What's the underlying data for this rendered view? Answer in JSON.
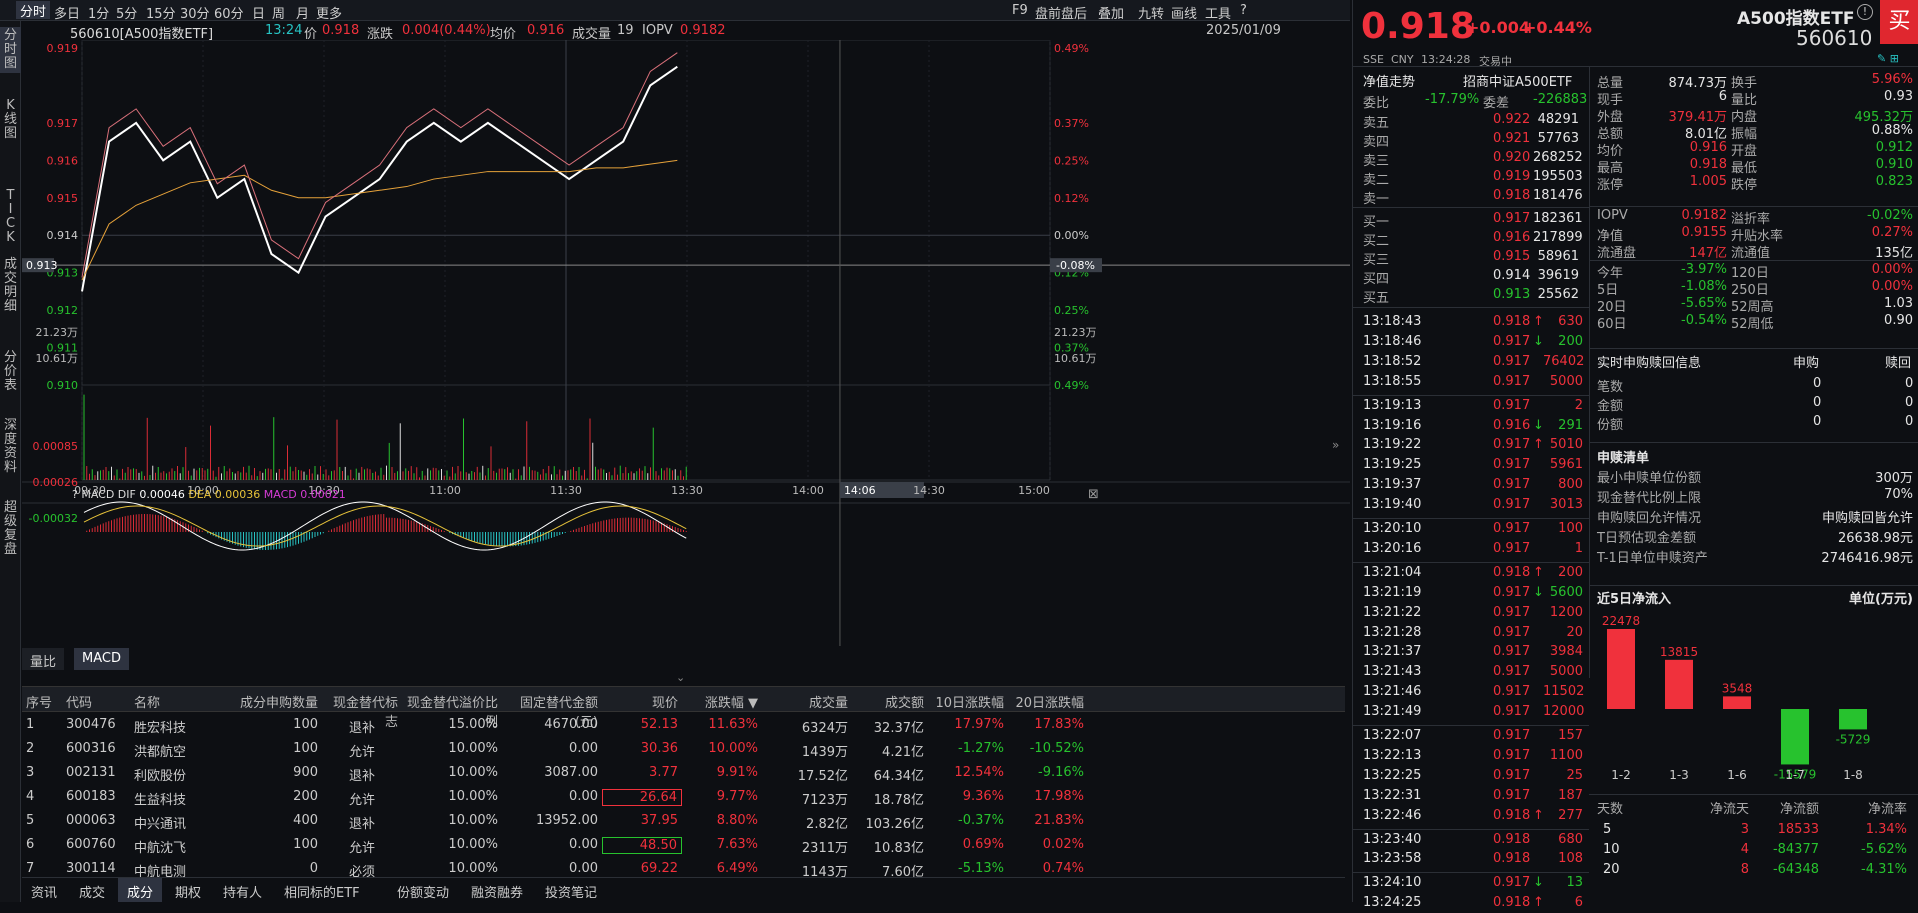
{
  "toolbar": {
    "left": [
      "分时",
      "多日",
      "1分",
      "5分",
      "15分",
      "30分",
      "60分",
      "日",
      "周",
      "月",
      "更多"
    ],
    "right": [
      "F9",
      "盘前盘后",
      "叠加",
      "九转",
      "画线",
      "工具",
      "?"
    ]
  },
  "sidebar": [
    "分时图",
    "K线图",
    "TICK",
    "成交明细",
    "分价表",
    "深度资料",
    "超级复盘"
  ],
  "info": {
    "name": "560610[A500指数ETF]",
    "time": "13:24",
    "price_label": "价",
    "price": "0.918",
    "chg_label": "涨跌",
    "chg": "0.004(0.44%)",
    "avg_label": "均价",
    "avg": "0.916",
    "vol_label": "成交量",
    "vol": "19",
    "iopv_label": "IOPV",
    "iopv": "0.9182",
    "date": "2025/01/09"
  },
  "price_axis_left": [
    "0.919",
    "0.917",
    "0.916",
    "0.915",
    "0.914",
    "0.913",
    "0.912",
    "0.911",
    "0.910"
  ],
  "price_axis_right": [
    "0.49%",
    "0.37%",
    "0.25%",
    "0.12%",
    "0.00%",
    "0.12%",
    "0.25%",
    "0.37%",
    "0.49%"
  ],
  "crosshair": {
    "price": "0.913",
    "pct": "-0.08%",
    "time": "14:06"
  },
  "vol_axis": [
    "21.23万",
    "10.61万"
  ],
  "time_axis": [
    "09:30",
    "10:00",
    "10:30",
    "11:00",
    "11:30",
    "13:00",
    "13:30",
    "14:00",
    "14:30",
    "15:00"
  ],
  "macd": {
    "title": "MACD",
    "dif_label": "DIF",
    "dif": "0.00046",
    "dea_label": "DEA",
    "dea": "0.00036",
    "macd_label": "MACD",
    "macd": "0.00021",
    "axis": [
      "0.00085",
      "0.00026",
      "-0.00032"
    ]
  },
  "indicator_tabs": [
    "量比",
    "MACD"
  ],
  "grid_headers": [
    "序号",
    "代码",
    "名称",
    "成分申购数量",
    "现金替代标志",
    "现金替代溢价比例",
    "固定替代金额(元)",
    "现价",
    "涨跌幅 ▼",
    "成交量",
    "成交额",
    "10日涨跌幅",
    "20日涨跌幅"
  ],
  "grid_rows": [
    [
      "1",
      "300476",
      "胜宏科技",
      "100",
      "退补",
      "15.00%",
      "4670.00",
      "52.13",
      "11.63%",
      "6324万",
      "32.37亿",
      "17.97%",
      "17.83%"
    ],
    [
      "2",
      "600316",
      "洪都航空",
      "100",
      "允许",
      "10.00%",
      "0.00",
      "30.36",
      "10.00%",
      "1439万",
      "4.21亿",
      "-1.27%",
      "-10.52%"
    ],
    [
      "3",
      "002131",
      "利欧股份",
      "900",
      "退补",
      "10.00%",
      "3087.00",
      "3.77",
      "9.91%",
      "17.52亿",
      "64.34亿",
      "12.54%",
      "-9.16%"
    ],
    [
      "4",
      "600183",
      "生益科技",
      "200",
      "允许",
      "10.00%",
      "0.00",
      "26.64",
      "9.77%",
      "7123万",
      "18.78亿",
      "9.36%",
      "17.98%"
    ],
    [
      "5",
      "000063",
      "中兴通讯",
      "400",
      "退补",
      "10.00%",
      "13952.00",
      "37.95",
      "8.80%",
      "2.82亿",
      "103.26亿",
      "-0.37%",
      "21.83%"
    ],
    [
      "6",
      "600760",
      "中航沈飞",
      "100",
      "允许",
      "10.00%",
      "0.00",
      "48.50",
      "7.63%",
      "2311万",
      "10.83亿",
      "0.69%",
      "0.02%"
    ],
    [
      "7",
      "300114",
      "中航电测",
      "0",
      "必须",
      "10.00%",
      "0.00",
      "69.22",
      "6.49%",
      "1143万",
      "7.60亿",
      "-5.13%",
      "0.74%"
    ]
  ],
  "footer_tabs": [
    "资讯",
    "成交",
    "成分",
    "期权",
    "持有人",
    "相同标的ETF",
    "份额变动",
    "融资融券",
    "投资笔记"
  ],
  "quote": {
    "price": "0.918",
    "chg": "+0.004",
    "pct": "+0.44%",
    "name": "A500指数ETF",
    "code": "560610",
    "buy": "买",
    "exch": "SSE",
    "cur": "CNY",
    "time": "13:24:28",
    "status": "交易中"
  },
  "nav_title": "净值走势",
  "index_name": "招商中证A500ETF",
  "weibi": {
    "l1": "委比",
    "v1": "-17.79%",
    "l2": "委差",
    "v2": "-226883"
  },
  "asks": [
    [
      "卖五",
      "0.922",
      "48291"
    ],
    [
      "卖四",
      "0.921",
      "57763"
    ],
    [
      "卖三",
      "0.920",
      "268252"
    ],
    [
      "卖二",
      "0.919",
      "195503"
    ],
    [
      "卖一",
      "0.918",
      "181476"
    ]
  ],
  "bids": [
    [
      "买一",
      "0.917",
      "182361"
    ],
    [
      "买二",
      "0.916",
      "217899"
    ],
    [
      "买三",
      "0.915",
      "58961"
    ],
    [
      "买四",
      "0.914",
      "39619"
    ],
    [
      "买五",
      "0.913",
      "25562"
    ]
  ],
  "stats": [
    [
      "总量",
      "874.73万",
      "换手",
      "5.96%"
    ],
    [
      "现手",
      "6",
      "量比",
      "0.93"
    ],
    [
      "外盘",
      "379.41万",
      "内盘",
      "495.32万"
    ],
    [
      "总额",
      "8.01亿",
      "振幅",
      "0.88%"
    ],
    [
      "均价",
      "0.916",
      "开盘",
      "0.912"
    ],
    [
      "最高",
      "0.918",
      "最低",
      "0.910"
    ],
    [
      "涨停",
      "1.005",
      "跌停",
      "0.823"
    ]
  ],
  "stats2": [
    [
      "IOPV",
      "0.9182",
      "溢折率",
      "-0.02%"
    ],
    [
      "净值",
      "0.9155",
      "升贴水率",
      "0.27%"
    ],
    [
      "流通盘",
      "147亿",
      "流通值",
      "135亿"
    ]
  ],
  "perf": [
    [
      "今年",
      "-3.97%",
      "120日",
      "0.00%"
    ],
    [
      "5日",
      "-1.08%",
      "250日",
      "0.00%"
    ],
    [
      "20日",
      "-5.65%",
      "52周高",
      "1.03"
    ],
    [
      "60日",
      "-0.54%",
      "52周低",
      "0.90"
    ]
  ],
  "sub": {
    "title": "实时申购赎回信息",
    "c1": "申购",
    "c2": "赎回",
    "rows": [
      [
        "笔数",
        "0",
        "0"
      ],
      [
        "金额",
        "0",
        "0"
      ],
      [
        "份额",
        "0",
        "0"
      ]
    ]
  },
  "list": {
    "title": "申赎清单",
    "rows": [
      [
        "最小申赎单位份额",
        "300万"
      ],
      [
        "现金替代比例上限",
        "70%"
      ],
      [
        "申购赎回允许情况",
        "申购赎回皆允许"
      ],
      [
        "T日预估现金差额",
        "26638.98元"
      ],
      [
        "T-1日单位申赎资产",
        "2746416.98元"
      ]
    ]
  },
  "flow": {
    "title": "近5日净流入",
    "unit": "单位(万元)",
    "bars": [
      {
        "label": "1-2",
        "value": 22478
      },
      {
        "label": "1-3",
        "value": 13815
      },
      {
        "label": "1-6",
        "value": 3548
      },
      {
        "label": "1-7",
        "value": -15579
      },
      {
        "label": "1-8",
        "value": -5729
      }
    ],
    "headers": [
      "天数",
      "净流天",
      "净流额",
      "净流率"
    ],
    "rows": [
      [
        "5",
        "3",
        "18533",
        "1.34%"
      ],
      [
        "10",
        "4",
        "-84377",
        "-5.62%"
      ],
      [
        "20",
        "8",
        "-64348",
        "-4.31%"
      ]
    ]
  },
  "ticks": [
    [
      "13:18:43",
      "0.918",
      "↑",
      "630"
    ],
    [
      "13:18:46",
      "0.917",
      "↓",
      "200"
    ],
    [
      "13:18:52",
      "0.917",
      "",
      "76402"
    ],
    [
      "13:18:55",
      "0.917",
      "",
      "5000"
    ],
    [
      "13:19:13",
      "0.917",
      "",
      "2"
    ],
    [
      "13:19:16",
      "0.916",
      "↓",
      "291"
    ],
    [
      "13:19:22",
      "0.917",
      "↑",
      "5010"
    ],
    [
      "13:19:25",
      "0.917",
      "",
      "5961"
    ],
    [
      "13:19:37",
      "0.917",
      "",
      "800"
    ],
    [
      "13:19:40",
      "0.917",
      "",
      "3013"
    ],
    [
      "13:20:10",
      "0.917",
      "",
      "100"
    ],
    [
      "13:20:16",
      "0.917",
      "",
      "1"
    ],
    [
      "13:21:04",
      "0.918",
      "↑",
      "200"
    ],
    [
      "13:21:19",
      "0.917",
      "↓",
      "5600"
    ],
    [
      "13:21:22",
      "0.917",
      "",
      "1200"
    ],
    [
      "13:21:28",
      "0.917",
      "",
      "20"
    ],
    [
      "13:21:37",
      "0.917",
      "",
      "3984"
    ],
    [
      "13:21:43",
      "0.917",
      "",
      "5000"
    ],
    [
      "13:21:46",
      "0.917",
      "",
      "11502"
    ],
    [
      "13:21:49",
      "0.917",
      "",
      "12000"
    ],
    [
      "13:22:07",
      "0.917",
      "",
      "157"
    ],
    [
      "13:22:13",
      "0.917",
      "",
      "1100"
    ],
    [
      "13:22:25",
      "0.917",
      "",
      "25"
    ],
    [
      "13:22:31",
      "0.917",
      "",
      "187"
    ],
    [
      "13:22:46",
      "0.918",
      "↑",
      "277"
    ],
    [
      "13:23:40",
      "0.918",
      "",
      "680"
    ],
    [
      "13:23:58",
      "0.918",
      "",
      "108"
    ],
    [
      "13:24:10",
      "0.917",
      "↓",
      "13"
    ],
    [
      "13:24:25",
      "0.918",
      "↑",
      "6"
    ]
  ],
  "chart_data": {
    "type": "line",
    "x_labels": [
      "09:30",
      "10:00",
      "10:30",
      "11:00",
      "11:30",
      "13:00",
      "13:30",
      "14:00",
      "14:30",
      "15:00"
    ],
    "ylim": [
      0.91,
      0.919
    ],
    "series": [
      {
        "values": [
          0.9125,
          0.9165,
          0.917,
          0.916,
          0.9165,
          0.915,
          0.9155,
          0.9135,
          0.913,
          0.9145,
          0.915,
          0.9155,
          0.9165,
          0.917,
          0.9165,
          0.917,
          0.9165,
          0.916,
          0.9155,
          0.916,
          0.9165,
          0.918,
          0.9185
        ]
      },
      {
        "values": [
          0.9128,
          0.9143,
          0.9148,
          0.9151,
          0.9154,
          0.9155,
          0.9156,
          0.9152,
          0.915,
          0.915,
          0.9151,
          0.9152,
          0.9153,
          0.9155,
          0.9156,
          0.9157,
          0.9157,
          0.9157,
          0.9157,
          0.9158,
          0.9158,
          0.9159,
          0.916
        ]
      }
    ]
  }
}
